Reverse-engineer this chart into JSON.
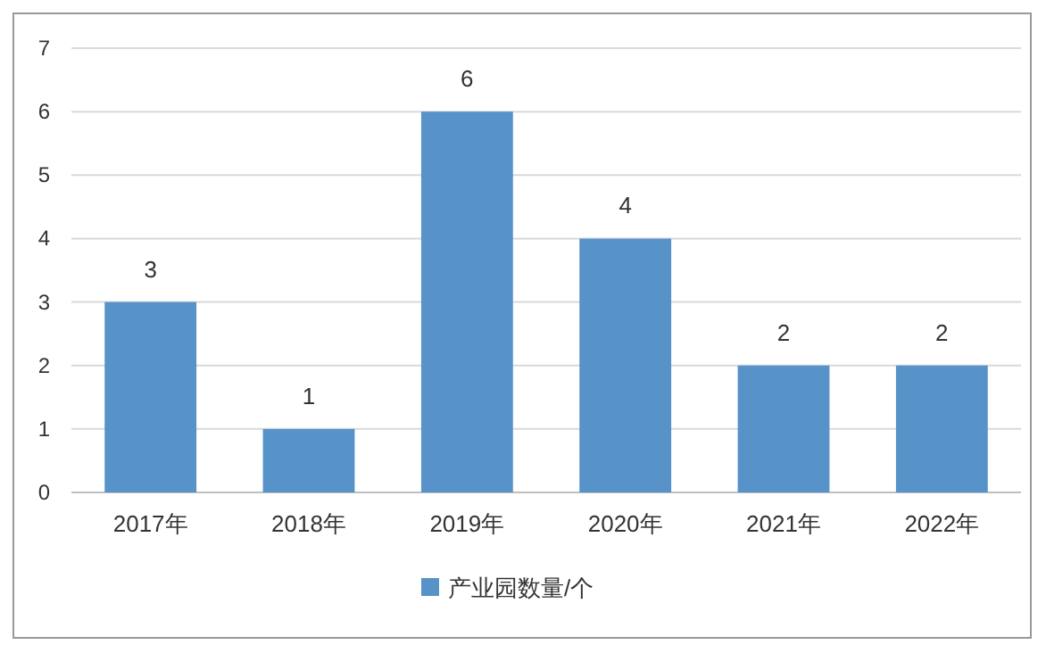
{
  "chart_data": {
    "type": "bar",
    "categories": [
      "2017年",
      "2018年",
      "2019年",
      "2020年",
      "2021年",
      "2022年"
    ],
    "series": [
      {
        "name": "产业园数量/个",
        "color": "#5793c9",
        "values": [
          3,
          1,
          6,
          4,
          2,
          2
        ]
      }
    ],
    "ylim": [
      0,
      7
    ],
    "yticks": [
      0,
      1,
      2,
      3,
      4,
      5,
      6,
      7
    ],
    "grid": "y",
    "legend": "bottom",
    "data_labels": true
  }
}
